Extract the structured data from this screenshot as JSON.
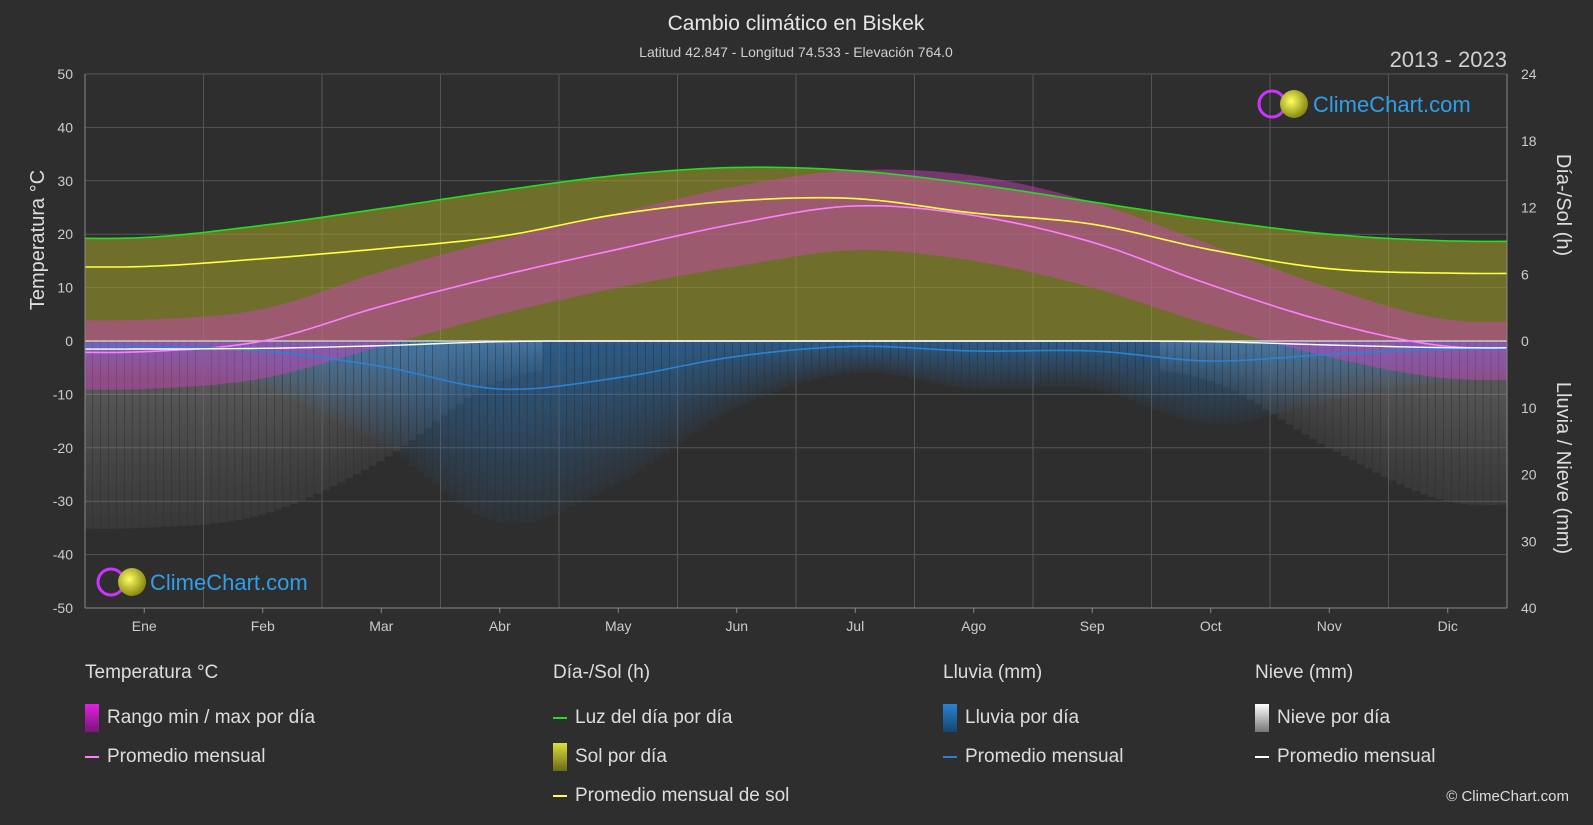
{
  "header": {
    "title": "Cambio climático en Biskek",
    "subtitle": "Latitud 42.847 - Longitud 74.533 - Elevación 764.0",
    "years": "2013 - 2023"
  },
  "brand": {
    "name": "ClimeChart.com",
    "copyright": "© ClimeChart.com"
  },
  "colors": {
    "background": "#2e2e2e",
    "temp_range": "#e020e0",
    "temp_avg": "#ff80ff",
    "daylight": "#22dd22",
    "sunshine_fill": "#a6a62a",
    "sunshine_avg": "#ffff44",
    "rain": "#2a82d4",
    "snow": "#ffffff",
    "brand_text": "#2f9fe8"
  },
  "chart_data": {
    "type": "line",
    "categories": [
      "Ene",
      "Feb",
      "Mar",
      "Abr",
      "May",
      "Jun",
      "Jul",
      "Ago",
      "Sep",
      "Oct",
      "Nov",
      "Dic"
    ],
    "left_axis": {
      "label": "Temperatura °C",
      "range": [
        -50,
        50
      ],
      "ticks": [
        50,
        40,
        30,
        20,
        10,
        0,
        -10,
        -20,
        -30,
        -40,
        -50
      ]
    },
    "right_axis_top": {
      "label": "Día-/Sol (h)",
      "range": [
        0,
        24
      ],
      "ticks": [
        24,
        18,
        12,
        6,
        0
      ]
    },
    "right_axis_bottom": {
      "label": "Lluvia / Nieve (mm)",
      "range": [
        0,
        40
      ],
      "ticks": [
        0,
        10,
        20,
        30,
        40
      ]
    },
    "series": [
      {
        "name": "Luz del día por día",
        "unit": "h",
        "values": [
          9.3,
          10.4,
          11.9,
          13.5,
          14.9,
          15.6,
          15.3,
          14.1,
          12.5,
          10.9,
          9.6,
          9.0
        ]
      },
      {
        "name": "Promedio mensual de sol",
        "unit": "h",
        "values": [
          6.7,
          7.4,
          8.3,
          9.4,
          11.4,
          12.6,
          12.8,
          11.5,
          10.5,
          8.2,
          6.5,
          6.1
        ]
      },
      {
        "name": "Temperatura promedio mensual",
        "unit": "°C",
        "values": [
          -2.0,
          0.0,
          6.5,
          12.2,
          17.2,
          22.0,
          25.3,
          23.5,
          18.5,
          10.5,
          3.5,
          -1.0
        ]
      },
      {
        "name": "Temperatura máxima",
        "unit": "°C",
        "values": [
          4,
          6,
          13,
          19,
          24,
          29,
          32,
          31,
          26,
          18,
          10,
          4
        ]
      },
      {
        "name": "Temperatura mínima",
        "unit": "°C",
        "values": [
          -9,
          -7,
          -1,
          5,
          10,
          14,
          17,
          15,
          10,
          3,
          -3,
          -7
        ]
      },
      {
        "name": "Lluvia promedio mensual",
        "unit": "mm",
        "values": [
          0.8,
          1.5,
          3.8,
          7.2,
          5.5,
          2.3,
          0.8,
          1.5,
          1.5,
          3.0,
          2.0,
          1.2
        ]
      },
      {
        "name": "Nieve promedio mensual",
        "unit": "mm",
        "values": [
          1.2,
          1.1,
          0.7,
          0.1,
          0.0,
          0.0,
          0.0,
          0.0,
          0.0,
          0.1,
          0.6,
          1.0
        ]
      }
    ],
    "grid": true
  },
  "legend": {
    "temperature": {
      "title": "Temperatura °C",
      "items": [
        "Rango min / max por día",
        "Promedio mensual"
      ]
    },
    "sun": {
      "title": "Día-/Sol (h)",
      "items": [
        "Luz del día por día",
        "Sol por día",
        "Promedio mensual de sol"
      ]
    },
    "rain": {
      "title": "Lluvia (mm)",
      "items": [
        "Lluvia por día",
        "Promedio mensual"
      ]
    },
    "snow": {
      "title": "Nieve (mm)",
      "items": [
        "Nieve por día",
        "Promedio mensual"
      ]
    }
  }
}
